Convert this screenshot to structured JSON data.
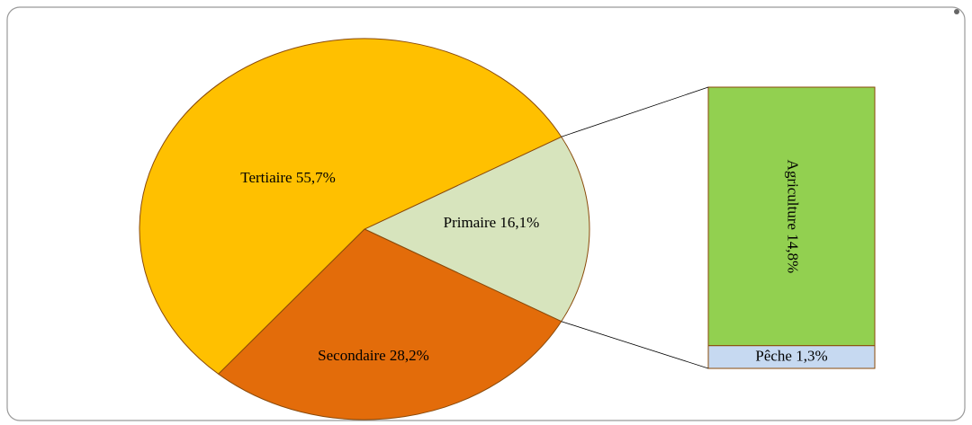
{
  "chart_data": [
    {
      "type": "pie",
      "categories": [
        "Primaire",
        "Secondaire",
        "Tertiaire"
      ],
      "values": [
        16.1,
        28.2,
        55.7
      ],
      "value_labels": [
        "Primaire 16,1%",
        "Secondaire 28,2%",
        "Tertiaire 55,7%"
      ],
      "colors": [
        "#d7e4bd",
        "#e36c0a",
        "#ffc000"
      ]
    },
    {
      "type": "bar",
      "stacked": true,
      "categories": [
        "Agriculture",
        "Pêche"
      ],
      "values": [
        14.8,
        1.3
      ],
      "value_labels": [
        "Agriculture 14,8%",
        "Pêche 1,3%"
      ],
      "colors": [
        "#92d050",
        "#c6d9f1"
      ]
    }
  ]
}
